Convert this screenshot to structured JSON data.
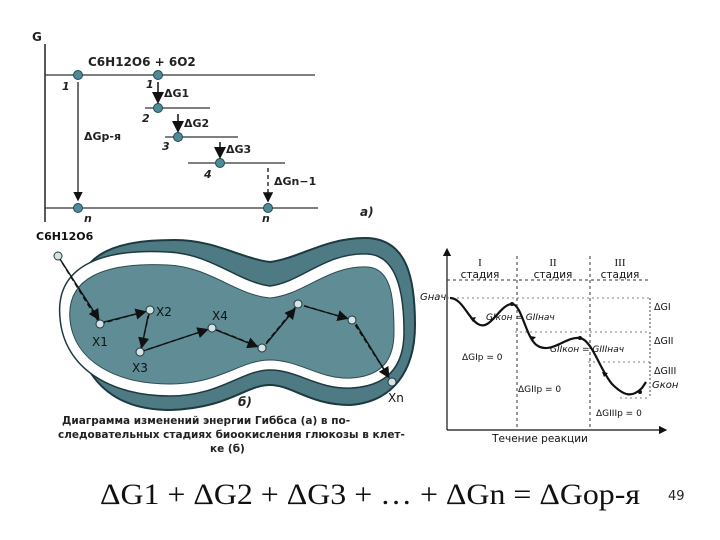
{
  "diagram_a": {
    "axis_label": "G",
    "reactant": "C6H12O6 + 6O2",
    "level_numbers": [
      "1",
      "1",
      "2",
      "3",
      "4",
      "n",
      "n"
    ],
    "overall_arrow": "ΔGр-я",
    "steps": [
      "ΔG1",
      "ΔG2",
      "ΔG3",
      "ΔGn−1"
    ],
    "panel_label": "а)"
  },
  "diagram_b": {
    "start_label": "C6H12O6",
    "nodes": [
      "X1",
      "X2",
      "X3",
      "X4",
      "Xn"
    ],
    "panel_label": "б)",
    "caption_lines": [
      "Диаграмма изменений энергии Гиббса (а) в по-",
      "следовательных стадиях биоокисления глюкозы в клет-",
      "ке (б)"
    ]
  },
  "diagram_c": {
    "stages": [
      {
        "num": "I",
        "name": "стадия"
      },
      {
        "num": "II",
        "name": "стадия"
      },
      {
        "num": "III",
        "name": "стадия"
      }
    ],
    "g_start": "Gнач",
    "g_end": "Gкон",
    "eq1": "GIкон = GIIнач",
    "eq2": "GIIкон = GIIIнач",
    "zero_eqs": [
      "ΔGIр = 0",
      "ΔGIIр = 0",
      "ΔGIIIр = 0"
    ],
    "right_labels": [
      "ΔGI",
      "ΔGII",
      "ΔGIII"
    ],
    "xlabel": "Течение реакции"
  },
  "formula": {
    "text": "ΔG1 + ΔG2 + ΔG3 + … + ΔGn = ΔGор-я"
  },
  "page_number": "49"
}
